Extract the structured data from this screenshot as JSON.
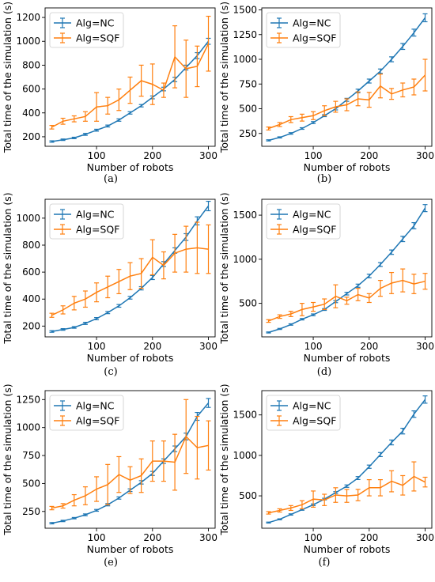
{
  "colors": {
    "nc": "#1f77b4",
    "sqf": "#ff7f0e"
  },
  "chart_data": [
    {
      "type": "line",
      "caption": "(a)",
      "xlabel": "Number of robots",
      "ylabel": "Total time of the simulation (s)",
      "xlim": [
        8,
        312
      ],
      "ylim": [
        120,
        1280
      ],
      "xticks": [
        100,
        200,
        300
      ],
      "yticks": [
        200,
        400,
        600,
        800,
        1000,
        1200
      ],
      "legend": "top-left",
      "x": [
        20,
        40,
        60,
        80,
        100,
        120,
        140,
        160,
        180,
        200,
        220,
        240,
        260,
        280,
        300
      ],
      "series": [
        {
          "name": "Alg=NC",
          "color": "#1f77b4",
          "values": [
            160,
            175,
            190,
            220,
            255,
            290,
            340,
            400,
            460,
            530,
            600,
            680,
            780,
            880,
            1000
          ],
          "errors": [
            6,
            6,
            6,
            8,
            8,
            8,
            10,
            10,
            10,
            12,
            15,
            18,
            20,
            25,
            25
          ]
        },
        {
          "name": "Alg=SQF",
          "color": "#ff7f0e",
          "values": [
            280,
            330,
            350,
            370,
            450,
            460,
            510,
            590,
            670,
            640,
            590,
            870,
            770,
            790,
            980
          ],
          "errors": [
            15,
            25,
            25,
            40,
            120,
            70,
            90,
            110,
            130,
            170,
            60,
            260,
            240,
            170,
            230
          ]
        }
      ]
    },
    {
      "type": "line",
      "caption": "(b)",
      "xlabel": "Number of robots",
      "ylabel": "",
      "xlim": [
        8,
        312
      ],
      "ylim": [
        120,
        1520
      ],
      "xticks": [
        100,
        200,
        300
      ],
      "yticks": [
        250,
        500,
        750,
        1000,
        1250,
        1500
      ],
      "legend": "top-left",
      "x": [
        20,
        40,
        60,
        80,
        100,
        120,
        140,
        160,
        180,
        200,
        220,
        240,
        260,
        280,
        300
      ],
      "series": [
        {
          "name": "Alg=NC",
          "color": "#1f77b4",
          "values": [
            180,
            210,
            250,
            300,
            360,
            430,
            500,
            590,
            680,
            780,
            880,
            1000,
            1130,
            1270,
            1420
          ],
          "errors": [
            6,
            6,
            8,
            8,
            10,
            10,
            12,
            15,
            18,
            20,
            22,
            25,
            30,
            35,
            40
          ]
        },
        {
          "name": "Alg=SQF",
          "color": "#ff7f0e",
          "values": [
            300,
            340,
            390,
            410,
            430,
            480,
            520,
            540,
            600,
            590,
            730,
            650,
            690,
            720,
            840
          ],
          "errors": [
            15,
            20,
            30,
            35,
            40,
            50,
            55,
            60,
            70,
            75,
            120,
            55,
            70,
            80,
            160
          ]
        }
      ]
    },
    {
      "type": "line",
      "caption": "(c)",
      "xlabel": "Number of robots",
      "ylabel": "Total time of the simulation (s)",
      "xlim": [
        8,
        312
      ],
      "ylim": [
        120,
        1140
      ],
      "xticks": [
        100,
        200,
        300
      ],
      "yticks": [
        200,
        400,
        600,
        800,
        1000
      ],
      "legend": "top-left",
      "x": [
        20,
        40,
        60,
        80,
        100,
        120,
        140,
        160,
        180,
        200,
        220,
        240,
        260,
        280,
        300
      ],
      "series": [
        {
          "name": "Alg=NC",
          "color": "#1f77b4",
          "values": [
            160,
            175,
            190,
            220,
            255,
            300,
            350,
            410,
            480,
            560,
            660,
            760,
            860,
            980,
            1090
          ],
          "errors": [
            6,
            6,
            6,
            8,
            8,
            8,
            10,
            10,
            12,
            15,
            18,
            20,
            25,
            30,
            35
          ]
        },
        {
          "name": "Alg=SQF",
          "color": "#ff7f0e",
          "values": [
            280,
            320,
            370,
            400,
            450,
            490,
            530,
            570,
            590,
            710,
            650,
            740,
            770,
            780,
            770
          ],
          "errors": [
            15,
            30,
            50,
            60,
            70,
            80,
            90,
            100,
            110,
            130,
            100,
            140,
            170,
            190,
            180
          ]
        }
      ]
    },
    {
      "type": "line",
      "caption": "(d)",
      "xlabel": "Number of robots",
      "ylabel": "",
      "xlim": [
        8,
        312
      ],
      "ylim": [
        120,
        1680
      ],
      "xticks": [
        100,
        200,
        300
      ],
      "yticks": [
        500,
        1000,
        1500
      ],
      "legend": "top-left",
      "x": [
        20,
        40,
        60,
        80,
        100,
        120,
        140,
        160,
        180,
        200,
        220,
        240,
        260,
        280,
        300
      ],
      "series": [
        {
          "name": "Alg=NC",
          "color": "#1f77b4",
          "values": [
            170,
            210,
            260,
            320,
            370,
            430,
            520,
            610,
            700,
            810,
            940,
            1080,
            1230,
            1380,
            1580
          ],
          "errors": [
            6,
            6,
            8,
            8,
            10,
            10,
            12,
            15,
            18,
            20,
            22,
            25,
            30,
            35,
            40
          ]
        },
        {
          "name": "Alg=SQF",
          "color": "#ff7f0e",
          "values": [
            300,
            350,
            380,
            430,
            460,
            490,
            580,
            530,
            600,
            560,
            670,
            730,
            760,
            720,
            750
          ],
          "errors": [
            15,
            20,
            30,
            70,
            50,
            60,
            130,
            40,
            70,
            50,
            90,
            120,
            130,
            110,
            90
          ]
        }
      ]
    },
    {
      "type": "line",
      "caption": "(e)",
      "xlabel": "Number of robots",
      "ylabel": "Total time of the simulation (s)",
      "xlim": [
        8,
        312
      ],
      "ylim": [
        100,
        1330
      ],
      "xticks": [
        100,
        200,
        300
      ],
      "yticks": [
        250,
        500,
        750,
        1000,
        1250
      ],
      "legend": "top-left",
      "x": [
        20,
        40,
        60,
        80,
        100,
        120,
        140,
        160,
        180,
        200,
        220,
        240,
        260,
        280,
        300
      ],
      "series": [
        {
          "name": "Alg=NC",
          "color": "#1f77b4",
          "values": [
            145,
            165,
            190,
            220,
            260,
            310,
            370,
            440,
            510,
            590,
            700,
            810,
            920,
            1100,
            1220
          ],
          "errors": [
            6,
            6,
            6,
            8,
            8,
            10,
            10,
            12,
            15,
            18,
            20,
            25,
            30,
            35,
            40
          ]
        },
        {
          "name": "Alg=SQF",
          "color": "#ff7f0e",
          "values": [
            280,
            300,
            350,
            390,
            450,
            490,
            580,
            530,
            570,
            700,
            700,
            690,
            920,
            820,
            840
          ],
          "errors": [
            15,
            20,
            50,
            80,
            110,
            180,
            160,
            120,
            150,
            180,
            180,
            250,
            330,
            280,
            220
          ]
        }
      ]
    },
    {
      "type": "line",
      "caption": "(f)",
      "xlabel": "Number of robots",
      "ylabel": "",
      "xlim": [
        8,
        312
      ],
      "ylim": [
        100,
        1800
      ],
      "xticks": [
        100,
        200,
        300
      ],
      "yticks": [
        500,
        1000,
        1500
      ],
      "legend": "top-left",
      "x": [
        20,
        40,
        60,
        80,
        100,
        120,
        140,
        160,
        180,
        200,
        220,
        240,
        260,
        280,
        300
      ],
      "series": [
        {
          "name": "Alg=NC",
          "color": "#1f77b4",
          "values": [
            170,
            210,
            270,
            330,
            390,
            460,
            540,
            620,
            720,
            860,
            1010,
            1160,
            1300,
            1510,
            1690
          ],
          "errors": [
            6,
            6,
            8,
            8,
            10,
            10,
            12,
            15,
            18,
            20,
            25,
            30,
            35,
            40,
            45
          ]
        },
        {
          "name": "Alg=SQF",
          "color": "#ff7f0e",
          "values": [
            290,
            320,
            350,
            390,
            460,
            450,
            510,
            500,
            510,
            600,
            600,
            680,
            630,
            740,
            670
          ],
          "errors": [
            15,
            20,
            30,
            50,
            100,
            70,
            90,
            80,
            70,
            100,
            100,
            130,
            120,
            180,
            60
          ]
        }
      ]
    }
  ]
}
